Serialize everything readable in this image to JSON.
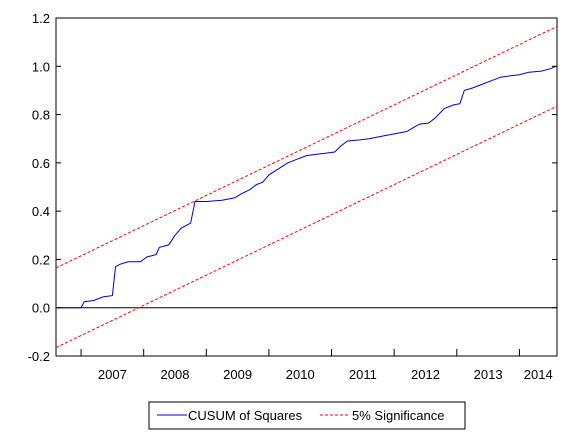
{
  "chart_data": {
    "type": "line",
    "title": "",
    "xlabel": "",
    "ylabel": "",
    "ylim": [
      -0.2,
      1.2
    ],
    "yticks": [
      "-0.2",
      "0.0",
      "0.2",
      "0.4",
      "0.6",
      "0.8",
      "1.0",
      "1.2"
    ],
    "xlim": [
      2006.6,
      2014.6
    ],
    "xticks": [
      "2007",
      "2008",
      "2009",
      "2010",
      "2011",
      "2012",
      "2013",
      "2014"
    ],
    "zero_line": true,
    "legend_position": "bottom",
    "series": [
      {
        "name": "CUSUM of Squares",
        "color": "#0000cc",
        "style": "solid",
        "points": [
          [
            2006.62,
            0.0
          ],
          [
            2006.9,
            0.0
          ],
          [
            2007.0,
            0.0
          ],
          [
            2007.05,
            0.025
          ],
          [
            2007.2,
            0.03
          ],
          [
            2007.35,
            0.045
          ],
          [
            2007.5,
            0.05
          ],
          [
            2007.55,
            0.17
          ],
          [
            2007.62,
            0.18
          ],
          [
            2007.75,
            0.19
          ],
          [
            2007.95,
            0.19
          ],
          [
            2008.05,
            0.21
          ],
          [
            2008.2,
            0.22
          ],
          [
            2008.25,
            0.25
          ],
          [
            2008.4,
            0.26
          ],
          [
            2008.5,
            0.3
          ],
          [
            2008.6,
            0.33
          ],
          [
            2008.75,
            0.35
          ],
          [
            2008.82,
            0.44
          ],
          [
            2009.0,
            0.44
          ],
          [
            2009.25,
            0.445
          ],
          [
            2009.45,
            0.455
          ],
          [
            2009.55,
            0.47
          ],
          [
            2009.7,
            0.49
          ],
          [
            2009.8,
            0.51
          ],
          [
            2009.9,
            0.52
          ],
          [
            2010.0,
            0.55
          ],
          [
            2010.15,
            0.575
          ],
          [
            2010.3,
            0.6
          ],
          [
            2010.45,
            0.615
          ],
          [
            2010.6,
            0.63
          ],
          [
            2010.75,
            0.635
          ],
          [
            2010.9,
            0.64
          ],
          [
            2011.05,
            0.645
          ],
          [
            2011.15,
            0.67
          ],
          [
            2011.25,
            0.69
          ],
          [
            2011.45,
            0.695
          ],
          [
            2011.6,
            0.7
          ],
          [
            2011.8,
            0.71
          ],
          [
            2012.0,
            0.72
          ],
          [
            2012.2,
            0.73
          ],
          [
            2012.4,
            0.76
          ],
          [
            2012.55,
            0.765
          ],
          [
            2012.65,
            0.785
          ],
          [
            2012.8,
            0.825
          ],
          [
            2012.95,
            0.84
          ],
          [
            2013.05,
            0.845
          ],
          [
            2013.12,
            0.9
          ],
          [
            2013.25,
            0.91
          ],
          [
            2013.4,
            0.925
          ],
          [
            2013.55,
            0.94
          ],
          [
            2013.7,
            0.955
          ],
          [
            2013.85,
            0.96
          ],
          [
            2014.0,
            0.965
          ],
          [
            2014.15,
            0.975
          ],
          [
            2014.35,
            0.98
          ],
          [
            2014.5,
            0.99
          ],
          [
            2014.58,
            1.0
          ]
        ]
      },
      {
        "name": "5% Significance",
        "color": "#ff0000",
        "style": "dashed",
        "points": [
          [
            2006.6,
            0.165
          ],
          [
            2014.6,
            1.165
          ]
        ]
      },
      {
        "name": "5% Significance lower",
        "color": "#ff0000",
        "style": "dashed",
        "points": [
          [
            2006.6,
            -0.165
          ],
          [
            2014.6,
            0.835
          ]
        ]
      }
    ],
    "legend": [
      "CUSUM of Squares",
      "5% Significance"
    ]
  }
}
